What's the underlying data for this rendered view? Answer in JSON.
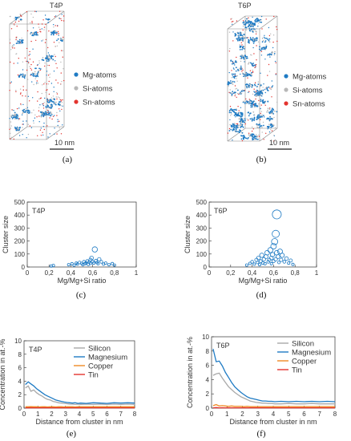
{
  "panels": {
    "a": {
      "title": "T4P",
      "scale": "10 nm",
      "caption": "(a)",
      "legend": [
        {
          "label": "Mg-atoms",
          "color": "#1f7bc4"
        },
        {
          "label": "Si-atoms",
          "color": "#b8b8b8"
        },
        {
          "label": "Sn-atoms",
          "color": "#e3342f"
        }
      ]
    },
    "b": {
      "title": "T6P",
      "scale": "10 nm",
      "caption": "(b)",
      "legend": [
        {
          "label": "Mg-atoms",
          "color": "#1f7bc4"
        },
        {
          "label": "Si-atoms",
          "color": "#b8b8b8"
        },
        {
          "label": "Sn-atoms",
          "color": "#e3342f"
        }
      ]
    },
    "c": {
      "caption": "(c)"
    },
    "d": {
      "caption": "(d)"
    },
    "e": {
      "caption": "(e)"
    },
    "f": {
      "caption": "(f)"
    }
  },
  "chart_data": [
    {
      "id": "c",
      "type": "scatter",
      "inset_label": "T4P",
      "xlabel": "Mg/Mg+Si ratio",
      "ylabel": "Cluster size",
      "xlim": [
        0,
        1
      ],
      "ylim": [
        0,
        500
      ],
      "xticks": [
        "0",
        "0,2",
        "0,4",
        "0,6",
        "0,8",
        "1"
      ],
      "yticks": [
        "0",
        "100",
        "200",
        "300",
        "400",
        "500"
      ],
      "marker_color": "#1f7bc4",
      "points": [
        [
          0.22,
          8
        ],
        [
          0.24,
          12
        ],
        [
          0.38,
          18
        ],
        [
          0.41,
          25
        ],
        [
          0.43,
          14
        ],
        [
          0.45,
          30
        ],
        [
          0.46,
          22
        ],
        [
          0.48,
          35
        ],
        [
          0.5,
          28
        ],
        [
          0.51,
          18
        ],
        [
          0.52,
          40
        ],
        [
          0.53,
          25
        ],
        [
          0.54,
          32
        ],
        [
          0.55,
          45
        ],
        [
          0.56,
          20
        ],
        [
          0.57,
          38
        ],
        [
          0.58,
          55
        ],
        [
          0.58,
          28
        ],
        [
          0.59,
          70
        ],
        [
          0.6,
          42
        ],
        [
          0.61,
          30
        ],
        [
          0.62,
          135
        ],
        [
          0.63,
          48
        ],
        [
          0.64,
          35
        ],
        [
          0.65,
          25
        ],
        [
          0.66,
          60
        ],
        [
          0.68,
          40
        ],
        [
          0.7,
          22
        ],
        [
          0.72,
          30
        ],
        [
          0.75,
          18
        ],
        [
          0.78,
          26
        ],
        [
          0.8,
          15
        ]
      ]
    },
    {
      "id": "d",
      "type": "scatter",
      "inset_label": "T6P",
      "xlabel": "Mg/Mg+Si ratio",
      "ylabel": "Cluster size",
      "xlim": [
        0,
        1
      ],
      "ylim": [
        0,
        500
      ],
      "xticks": [
        "0",
        "0,2",
        "0,4",
        "0,6",
        "0,8",
        "1"
      ],
      "yticks": [
        "0",
        "100",
        "200",
        "300",
        "400",
        "500"
      ],
      "marker_color": "#1f7bc4",
      "points": [
        [
          0.35,
          15
        ],
        [
          0.38,
          28
        ],
        [
          0.4,
          40
        ],
        [
          0.42,
          22
        ],
        [
          0.44,
          55
        ],
        [
          0.45,
          35
        ],
        [
          0.46,
          70
        ],
        [
          0.47,
          18
        ],
        [
          0.48,
          45
        ],
        [
          0.49,
          90
        ],
        [
          0.5,
          30
        ],
        [
          0.51,
          60
        ],
        [
          0.52,
          25
        ],
        [
          0.53,
          80
        ],
        [
          0.54,
          110
        ],
        [
          0.55,
          40
        ],
        [
          0.56,
          55
        ],
        [
          0.57,
          130
        ],
        [
          0.58,
          70
        ],
        [
          0.58,
          25
        ],
        [
          0.59,
          95
        ],
        [
          0.6,
          160
        ],
        [
          0.6,
          45
        ],
        [
          0.61,
          195
        ],
        [
          0.62,
          255
        ],
        [
          0.62,
          60
        ],
        [
          0.63,
          405
        ],
        [
          0.63,
          110
        ],
        [
          0.64,
          80
        ],
        [
          0.65,
          35
        ],
        [
          0.66,
          120
        ],
        [
          0.67,
          55
        ],
        [
          0.68,
          90
        ],
        [
          0.7,
          40
        ],
        [
          0.72,
          65
        ],
        [
          0.74,
          30
        ],
        [
          0.76,
          50
        ],
        [
          0.78,
          20
        ]
      ]
    },
    {
      "id": "e",
      "type": "line",
      "inset_label": "T4P",
      "xlabel": "Distance from cluster in nm",
      "ylabel": "Concentration in at.-%",
      "xlim": [
        0,
        8
      ],
      "ylim": [
        0,
        10
      ],
      "xticks": [
        "0",
        "1",
        "2",
        "3",
        "4",
        "5",
        "6",
        "7",
        "8"
      ],
      "yticks": [
        "0",
        "2",
        "4",
        "6",
        "8",
        "10"
      ],
      "x": [
        0.1,
        0.3,
        0.5,
        0.7,
        0.9,
        1.1,
        1.3,
        1.5,
        1.7,
        1.9,
        2.1,
        2.3,
        2.5,
        2.7,
        2.9,
        3.1,
        3.3,
        3.5,
        3.7,
        3.9,
        4.1,
        4.5,
        5,
        5.5,
        6,
        6.5,
        7,
        7.5,
        8
      ],
      "series": [
        {
          "name": "Silicon",
          "color": "#a9a9a9",
          "values": [
            3.0,
            3.3,
            2.5,
            2.7,
            2.3,
            2.0,
            1.8,
            1.5,
            1.3,
            1.2,
            1.0,
            0.9,
            0.8,
            0.75,
            0.7,
            0.65,
            0.6,
            0.6,
            0.55,
            0.6,
            0.55,
            0.6,
            0.55,
            0.6,
            0.55,
            0.6,
            0.55,
            0.6,
            0.55
          ]
        },
        {
          "name": "Magnesium",
          "color": "#1f7bc4",
          "values": [
            3.5,
            3.9,
            3.6,
            3.3,
            2.9,
            2.6,
            2.3,
            2.0,
            1.8,
            1.6,
            1.4,
            1.2,
            1.1,
            1.0,
            0.9,
            0.85,
            0.8,
            0.75,
            0.8,
            0.7,
            0.75,
            0.7,
            0.8,
            0.75,
            0.7,
            0.8,
            0.75,
            0.8,
            0.75
          ]
        },
        {
          "name": "Copper",
          "color": "#f08a24",
          "values": [
            0.2,
            0.2,
            0.22,
            0.2,
            0.2,
            0.18,
            0.2,
            0.2,
            0.18,
            0.2,
            0.2,
            0.18,
            0.2,
            0.2,
            0.18,
            0.2,
            0.2,
            0.2,
            0.18,
            0.2,
            0.2,
            0.2,
            0.2,
            0.2,
            0.2,
            0.2,
            0.2,
            0.2,
            0.2
          ]
        },
        {
          "name": "Tin",
          "color": "#e3342f",
          "values": [
            0.05,
            0.05,
            0.06,
            0.05,
            0.05,
            0.05,
            0.05,
            0.06,
            0.05,
            0.05,
            0.05,
            0.05,
            0.05,
            0.05,
            0.05,
            0.05,
            0.05,
            0.05,
            0.05,
            0.05,
            0.05,
            0.05,
            0.05,
            0.05,
            0.05,
            0.05,
            0.05,
            0.05,
            0.05
          ]
        }
      ]
    },
    {
      "id": "f",
      "type": "line",
      "inset_label": "T6P",
      "xlabel": "Distance from cluster in nm",
      "ylabel": "Concentration in at.-%",
      "xlim": [
        0,
        8
      ],
      "ylim": [
        0,
        10
      ],
      "xticks": [
        "0",
        "1",
        "2",
        "3",
        "4",
        "5",
        "6",
        "7",
        "8"
      ],
      "yticks": [
        "0",
        "2",
        "4",
        "6",
        "8",
        "10"
      ],
      "x": [
        0.1,
        0.3,
        0.5,
        0.7,
        0.9,
        1.1,
        1.3,
        1.5,
        1.7,
        1.9,
        2.1,
        2.3,
        2.5,
        2.7,
        2.9,
        3.1,
        3.3,
        3.5,
        3.7,
        3.9,
        4.1,
        4.5,
        5,
        5.5,
        6,
        6.5,
        7,
        7.5,
        8
      ],
      "series": [
        {
          "name": "Silicon",
          "color": "#a9a9a9",
          "values": [
            4.6,
            4.8,
            4.9,
            4.2,
            3.6,
            3.0,
            2.6,
            2.2,
            1.9,
            1.6,
            1.4,
            1.2,
            1.0,
            0.9,
            0.8,
            0.75,
            0.7,
            0.7,
            0.65,
            0.65,
            0.6,
            0.6,
            0.65,
            0.6,
            0.6,
            0.65,
            0.6,
            0.6,
            0.6
          ]
        },
        {
          "name": "Magnesium",
          "color": "#1f7bc4",
          "values": [
            8.3,
            6.5,
            6.6,
            5.9,
            5.0,
            4.3,
            3.6,
            3.0,
            2.6,
            2.2,
            1.9,
            1.6,
            1.4,
            1.3,
            1.2,
            1.1,
            1.0,
            1.0,
            0.95,
            0.95,
            0.9,
            0.95,
            0.9,
            0.95,
            0.9,
            0.95,
            0.9,
            0.95,
            0.9
          ]
        },
        {
          "name": "Copper",
          "color": "#f08a24",
          "values": [
            0.35,
            0.5,
            0.3,
            0.35,
            0.3,
            0.25,
            0.3,
            0.25,
            0.25,
            0.25,
            0.2,
            0.25,
            0.2,
            0.2,
            0.2,
            0.2,
            0.2,
            0.2,
            0.2,
            0.2,
            0.2,
            0.2,
            0.2,
            0.2,
            0.2,
            0.2,
            0.2,
            0.2,
            0.2
          ]
        },
        {
          "name": "Tin",
          "color": "#e3342f",
          "values": [
            0.05,
            0.08,
            0.05,
            0.06,
            0.05,
            0.05,
            0.05,
            0.05,
            0.05,
            0.05,
            0.05,
            0.05,
            0.05,
            0.05,
            0.05,
            0.05,
            0.05,
            0.05,
            0.05,
            0.05,
            0.05,
            0.05,
            0.05,
            0.05,
            0.05,
            0.05,
            0.05,
            0.05,
            0.05
          ]
        }
      ]
    }
  ]
}
